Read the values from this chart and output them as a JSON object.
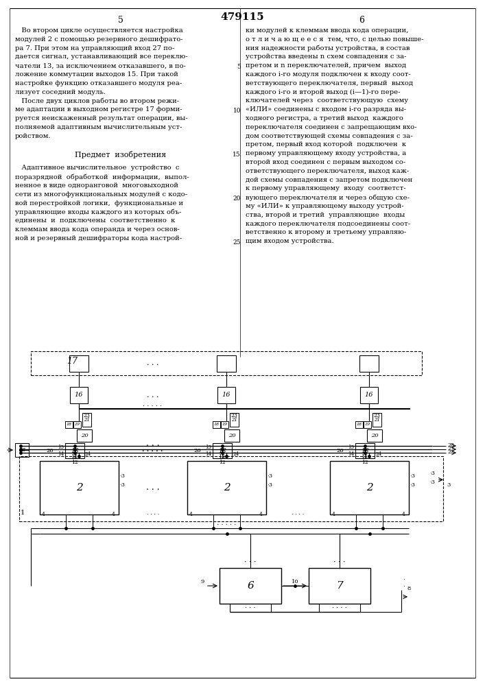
{
  "title": "479115",
  "page_left": "5",
  "page_right": "6",
  "bg_color": "#ffffff",
  "text_color": "#000000",
  "text_left": [
    "   Во втором цикле осуществляется настройка",
    "модулей 2 с помощью резервного дешифрато-",
    "ра 7. При этом на управляющий вход 27 по-",
    "дается сигнал, устанавливающий все переклю-",
    "чатели 13, за исключением отказавшего, в по-",
    "ложение коммутации выходов 15. При такой",
    "настройке функцию отказавшего модуля реа-",
    "лизует соседний модуль.",
    "   После двух циклов работы во втором режи-",
    "ме адаптации в выходном регистре 17 форми-",
    "руется неискаженный результат операции, вы-",
    "полняемой адаптивным вычислительным уст-",
    "ройством."
  ],
  "text_subject": "Предмет  изобретения",
  "text_claim": [
    "   Адаптивное вычислительное  устройство  с",
    "поразрядной  обработкой  информации,  выпол-",
    "ненное в виде одноранговой  многовыходной",
    "сети из многофункциональных модулей с кодо-",
    "вой перестройкой логики,  функциональные и",
    "управляющие входы каждого из которых объ-",
    "единены  и  подключены  соответственно  к",
    "клеммам ввода кода операнда и через основ-",
    "ной и резервный дешифраторы кода настрой-"
  ],
  "text_right": [
    "ки модулей к клеммам ввода кода операции,",
    "о т л и ч а ю щ е е с я  тем, что, с целью повыше-",
    "ния надежности работы устройства, в состав",
    "устройства введены n схем совпадения с за-",
    "претом и n переключателей, причем  выход",
    "каждого i-го модуля подключен к входу соот-",
    "ветствующего переключателя, первый  выход",
    "каждого i-го и второй выход (i—1)-го пере-",
    "ключателей через  соответствующую  схему",
    "«ИЛИ» соединены с входом i-го разряда вы-",
    "ходного регистра, а третий выход  каждого",
    "переключателя соединен с запрещающим вхо-",
    "дом соответствующей схемы совпадения с за-",
    "претом, первый вход которой  подключен  к",
    "первому управляющему входу устройства, а",
    "второй вход соединен с первым выходом со-",
    "ответствующего переключателя, выход каж-",
    "дой схемы совпадения с запретом подключен",
    "к первому управляющему  входу  соответст-",
    "вующего переключателя и через общую схе-",
    "му «ИЛИ» к управляющему выходу устрой-",
    "ства, второй и третий  управляющие  входы",
    "каждого переключателя подсоединены соот-",
    "ветственно к второму и третьему управляю-",
    "щим входом устройства."
  ]
}
